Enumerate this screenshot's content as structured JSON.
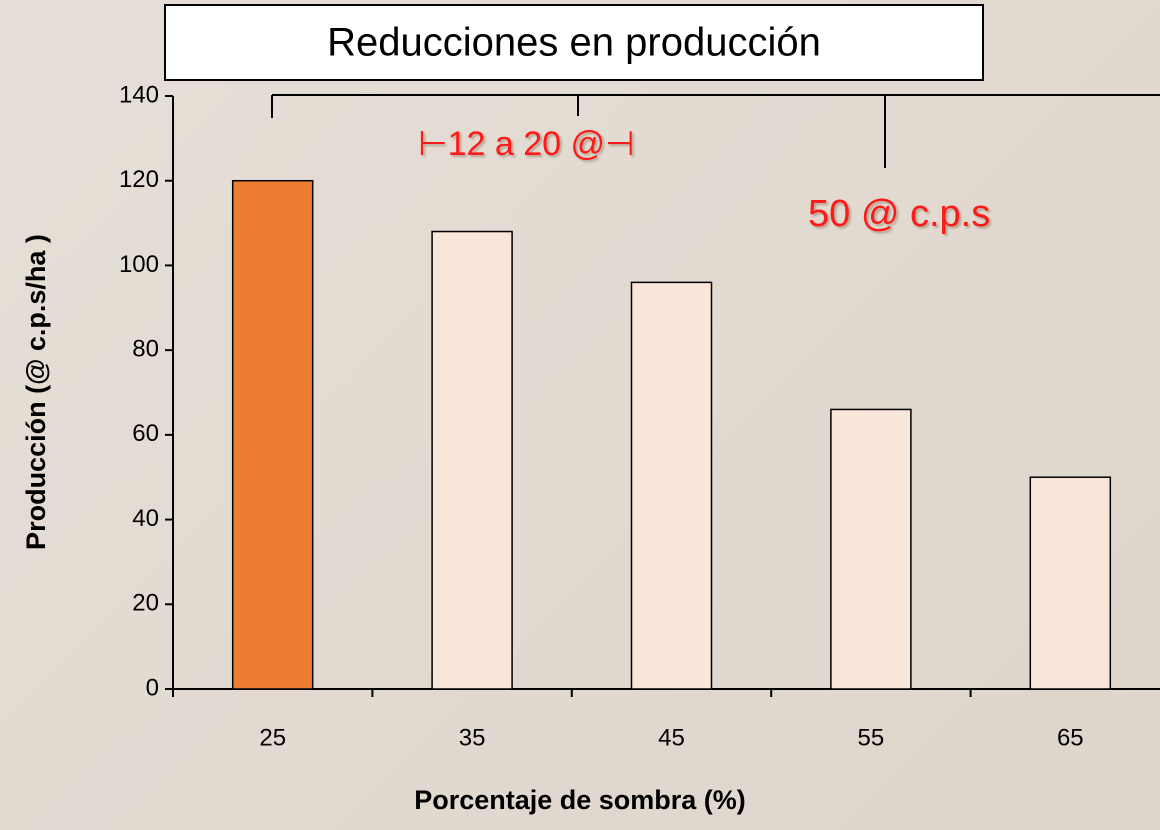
{
  "chart_data": {
    "type": "bar",
    "title": "Reducciones en producción",
    "x_label": "Porcentaje de sombra (%)",
    "y_label": "Producción (@ c.p.s/ha )",
    "categories": [
      "25",
      "35",
      "45",
      "55",
      "65"
    ],
    "values": [
      120,
      108,
      96,
      66,
      50
    ],
    "colors": [
      "#ed7d31",
      "#fae5d9",
      "#fae5d9",
      "#fae5d9",
      "#fae5d9"
    ],
    "ylim": [
      0,
      140
    ],
    "yticks": [
      0,
      20,
      40,
      60,
      80,
      100,
      120,
      140
    ],
    "annotations": [
      "⊢12 a 20 @⊣",
      "50 @ c.p.s"
    ]
  }
}
